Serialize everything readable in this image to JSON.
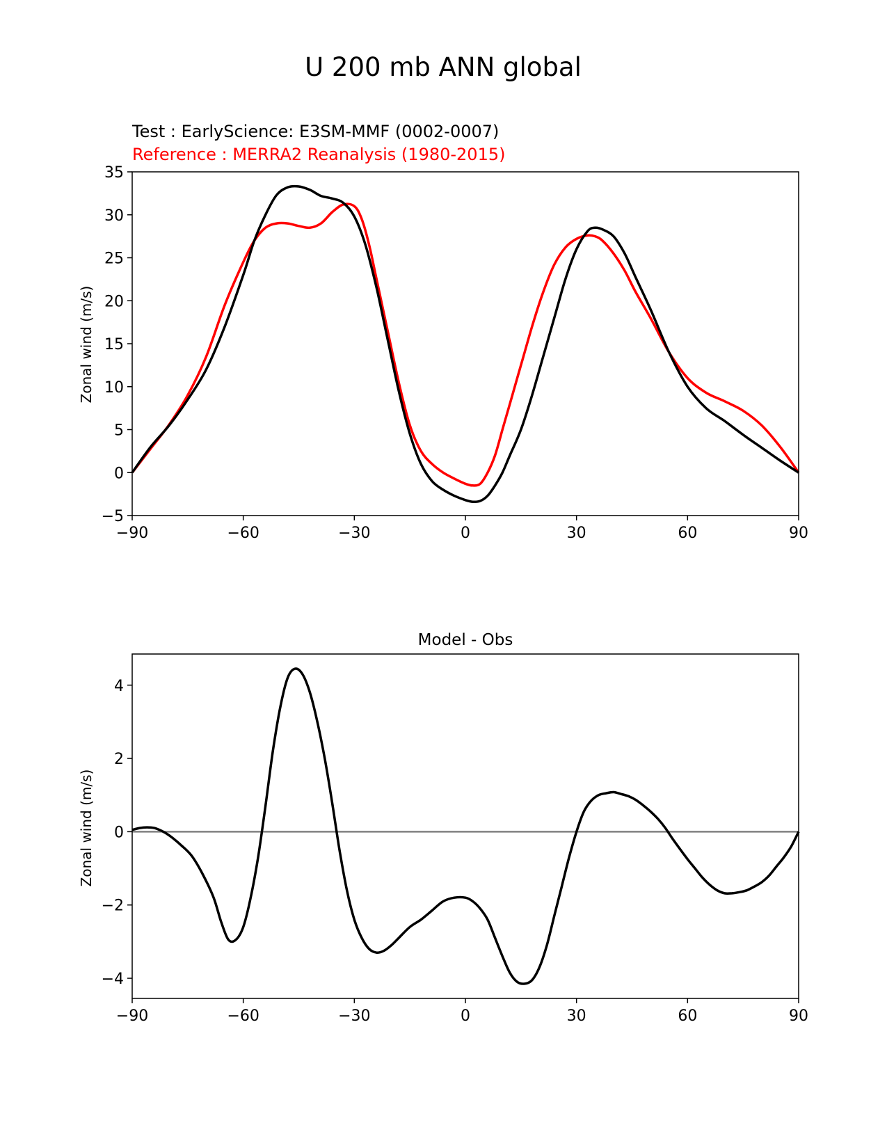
{
  "figure": {
    "title": "U 200 mb ANN global"
  },
  "chart_data": [
    {
      "type": "line",
      "test_label": "Test : EarlyScience: E3SM-MMF (0002-0007)",
      "reference_label": "Reference : MERRA2 Reanalysis (1980-2015)",
      "title": "",
      "xlabel": "",
      "ylabel": "Zonal wind (m/s)",
      "xlim": [
        -90,
        90
      ],
      "ylim": [
        -5,
        35
      ],
      "xticks": [
        -90,
        -60,
        -30,
        0,
        30,
        60,
        90
      ],
      "xtick_labels": [
        "−90",
        "−60",
        "−30",
        "0",
        "30",
        "60",
        "90"
      ],
      "yticks": [
        -5,
        0,
        5,
        10,
        15,
        20,
        25,
        30,
        35
      ],
      "ytick_labels": [
        "−5",
        "0",
        "5",
        "10",
        "15",
        "20",
        "25",
        "30",
        "35"
      ],
      "grid": false,
      "series": [
        {
          "role": "test",
          "color": "#000000",
          "x": [
            -90,
            -85,
            -80,
            -75,
            -70,
            -65,
            -60,
            -57,
            -54,
            -51,
            -48,
            -45,
            -42,
            -39,
            -36,
            -33,
            -30,
            -27,
            -24,
            -21,
            -18,
            -15,
            -12,
            -9,
            -6,
            -3,
            0,
            2,
            4,
            6,
            8,
            10,
            12,
            15,
            18,
            21,
            24,
            27,
            30,
            33,
            35,
            37,
            40,
            43,
            46,
            50,
            55,
            60,
            65,
            70,
            75,
            80,
            85,
            90
          ],
          "y": [
            0,
            3,
            5.5,
            8.5,
            12,
            17,
            23,
            27,
            30,
            32.3,
            33.2,
            33.3,
            32.9,
            32.2,
            31.9,
            31.4,
            29.8,
            26.5,
            21.5,
            15.5,
            9.5,
            4.5,
            1,
            -1,
            -2,
            -2.7,
            -3.2,
            -3.4,
            -3.3,
            -2.7,
            -1.5,
            0,
            2,
            5,
            9,
            13.5,
            18,
            22.5,
            26,
            28.1,
            28.5,
            28.3,
            27.5,
            25.5,
            22.7,
            19,
            14,
            10,
            7.5,
            6,
            4.4,
            2.9,
            1.4,
            0
          ]
        },
        {
          "role": "reference",
          "color": "#ff0000",
          "x": [
            -90,
            -85,
            -80,
            -75,
            -70,
            -65,
            -60,
            -57,
            -54,
            -51,
            -48,
            -45,
            -42,
            -39,
            -36,
            -33,
            -30,
            -28,
            -26,
            -24,
            -21,
            -18,
            -15,
            -12,
            -9,
            -6,
            -3,
            0,
            2,
            4,
            6,
            8,
            10,
            12,
            15,
            18,
            21,
            24,
            27,
            30,
            33,
            35,
            37,
            40,
            43,
            46,
            50,
            55,
            60,
            65,
            70,
            75,
            80,
            85,
            90
          ],
          "y": [
            0,
            2.8,
            5.6,
            9,
            13.5,
            19.5,
            24.5,
            27,
            28.5,
            29,
            29,
            28.7,
            28.5,
            29,
            30.3,
            31.2,
            31,
            29.5,
            26.5,
            22.5,
            16.5,
            10.5,
            5.5,
            2.5,
            1,
            0,
            -0.7,
            -1.3,
            -1.5,
            -1.3,
            0,
            2,
            5,
            8,
            12.5,
            17,
            21,
            24.2,
            26.2,
            27.2,
            27.6,
            27.5,
            27,
            25.5,
            23.5,
            21,
            18,
            14,
            11,
            9.3,
            8.3,
            7.2,
            5.5,
            3,
            0
          ]
        }
      ]
    },
    {
      "type": "line",
      "title": "Model - Obs",
      "xlabel": "",
      "ylabel": "Zonal wind (m/s)",
      "xlim": [
        -90,
        90
      ],
      "ylim": [
        -4.55,
        4.85
      ],
      "xticks": [
        -90,
        -60,
        -30,
        0,
        30,
        60,
        90
      ],
      "xtick_labels": [
        "−90",
        "−60",
        "−30",
        "0",
        "30",
        "60",
        "90"
      ],
      "yticks": [
        -4,
        -2,
        0,
        2,
        4
      ],
      "ytick_labels": [
        "−4",
        "−2",
        "0",
        "2",
        "4"
      ],
      "grid": false,
      "zero_line_color": "#808080",
      "series": [
        {
          "role": "difference",
          "color": "#000000",
          "x": [
            -90,
            -88,
            -86,
            -84,
            -82,
            -80,
            -77,
            -74,
            -71,
            -68,
            -66,
            -64,
            -62,
            -60,
            -58,
            -56,
            -54,
            -52,
            -50,
            -48,
            -46,
            -44,
            -42,
            -40,
            -38,
            -36,
            -34,
            -32,
            -30,
            -28,
            -26,
            -24,
            -22,
            -20,
            -18,
            -15,
            -12,
            -9,
            -6,
            -3,
            0,
            2,
            4,
            6,
            8,
            10,
            12,
            14,
            16,
            18,
            20,
            22,
            24,
            26,
            28,
            30,
            32,
            34,
            36,
            38,
            40,
            42,
            44,
            46,
            48,
            50,
            52,
            54,
            56,
            58,
            60,
            62,
            64,
            66,
            68,
            70,
            72,
            74,
            76,
            78,
            80,
            82,
            84,
            86,
            88,
            90
          ],
          "y": [
            0.05,
            0.1,
            0.12,
            0.1,
            0.02,
            -0.1,
            -0.35,
            -0.65,
            -1.15,
            -1.8,
            -2.45,
            -2.95,
            -2.95,
            -2.6,
            -1.8,
            -0.7,
            0.7,
            2.2,
            3.4,
            4.2,
            4.45,
            4.3,
            3.8,
            3.0,
            2.0,
            0.8,
            -0.5,
            -1.6,
            -2.4,
            -2.9,
            -3.2,
            -3.3,
            -3.25,
            -3.1,
            -2.9,
            -2.6,
            -2.4,
            -2.15,
            -1.9,
            -1.8,
            -1.8,
            -1.9,
            -2.1,
            -2.4,
            -2.9,
            -3.4,
            -3.85,
            -4.1,
            -4.15,
            -4.05,
            -3.7,
            -3.1,
            -2.3,
            -1.5,
            -0.7,
            0.0,
            0.55,
            0.85,
            1.0,
            1.05,
            1.08,
            1.03,
            0.97,
            0.87,
            0.72,
            0.55,
            0.35,
            0.1,
            -0.2,
            -0.48,
            -0.75,
            -1.0,
            -1.25,
            -1.45,
            -1.6,
            -1.68,
            -1.68,
            -1.65,
            -1.6,
            -1.5,
            -1.38,
            -1.2,
            -0.95,
            -0.7,
            -0.4,
            0.0
          ]
        }
      ]
    }
  ]
}
